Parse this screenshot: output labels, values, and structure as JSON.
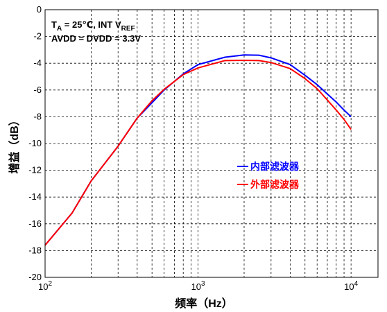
{
  "chart_data": {
    "type": "line",
    "title": "",
    "xlabel": "频率（Hz）",
    "ylabel": "增益（dB）",
    "x_scale": "log",
    "xlim": [
      100,
      15000
    ],
    "ylim": [
      -20,
      0
    ],
    "grid": true,
    "grid_style": "dashed",
    "legend_position": "center-right",
    "x_ticks": [
      {
        "value": 100,
        "base": "10",
        "exp": "2"
      },
      {
        "value": 1000,
        "base": "10",
        "exp": "3"
      },
      {
        "value": 10000,
        "base": "10",
        "exp": "4"
      }
    ],
    "y_ticks": [
      0,
      -2,
      -4,
      -6,
      -8,
      -10,
      -12,
      -14,
      -16,
      -18,
      -20
    ],
    "annotations": {
      "line1": {
        "t": "T",
        "t_sub": "A",
        "mid": " = 25℃, INT  V",
        "v_sub": "REF"
      },
      "line2": "AVDD = DVDD = 3.3V"
    },
    "series": [
      {
        "name": "内部滤波器",
        "color": "#0000ff",
        "x": [
          100,
          150,
          200,
          300,
          400,
          500,
          600,
          800,
          1000,
          1500,
          2000,
          2500,
          3000,
          4000,
          5000,
          6000,
          7000,
          8000,
          9000,
          10000
        ],
        "y": [
          -17.6,
          -15.2,
          -12.8,
          -10.2,
          -8.1,
          -6.95,
          -6.0,
          -4.8,
          -4.1,
          -3.55,
          -3.38,
          -3.4,
          -3.6,
          -4.1,
          -4.9,
          -5.6,
          -6.3,
          -6.9,
          -7.5,
          -8.0
        ]
      },
      {
        "name": "外部滤波器",
        "color": "#ff0000",
        "x": [
          100,
          150,
          200,
          300,
          400,
          500,
          600,
          800,
          1000,
          1500,
          2000,
          2500,
          3000,
          4000,
          5000,
          6000,
          7000,
          8000,
          9000,
          10000
        ],
        "y": [
          -17.6,
          -15.2,
          -12.8,
          -10.2,
          -8.1,
          -6.8,
          -5.95,
          -4.85,
          -4.35,
          -3.8,
          -3.78,
          -3.8,
          -3.95,
          -4.4,
          -5.15,
          -5.9,
          -6.75,
          -7.5,
          -8.2,
          -8.95
        ]
      }
    ]
  }
}
